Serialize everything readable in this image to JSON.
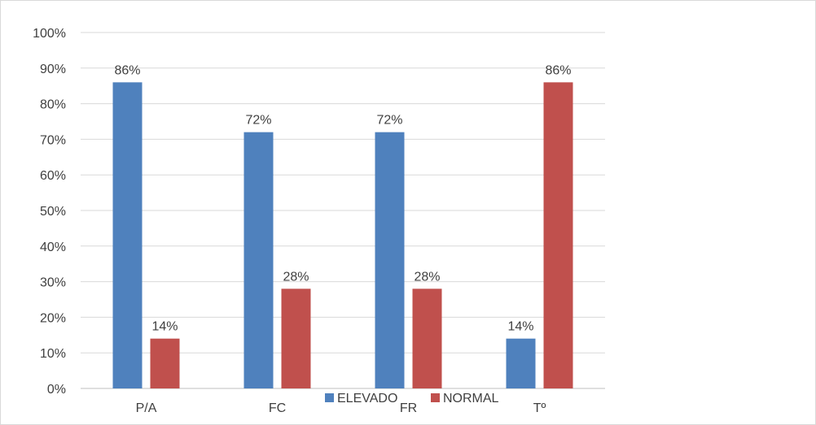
{
  "chart_data": {
    "type": "bar",
    "categories": [
      "P/A",
      "FC",
      "FR",
      "Tº"
    ],
    "series": [
      {
        "name": "ELEVADO",
        "values": [
          86,
          72,
          72,
          14
        ],
        "color": "#4f81bd"
      },
      {
        "name": "NORMAL",
        "values": [
          14,
          28,
          28,
          86
        ],
        "color": "#c0504d"
      }
    ],
    "data_labels": [
      [
        "86%",
        "72%",
        "72%",
        "14%"
      ],
      [
        "14%",
        "28%",
        "28%",
        "86%"
      ]
    ],
    "ylim": [
      0,
      100
    ],
    "y_ticks": [
      "0%",
      "10%",
      "20%",
      "30%",
      "40%",
      "50%",
      "60%",
      "70%",
      "80%",
      "90%",
      "100%"
    ],
    "grid": true,
    "legend_placement": "bottom-center",
    "title": "",
    "xlabel": "",
    "ylabel": ""
  }
}
